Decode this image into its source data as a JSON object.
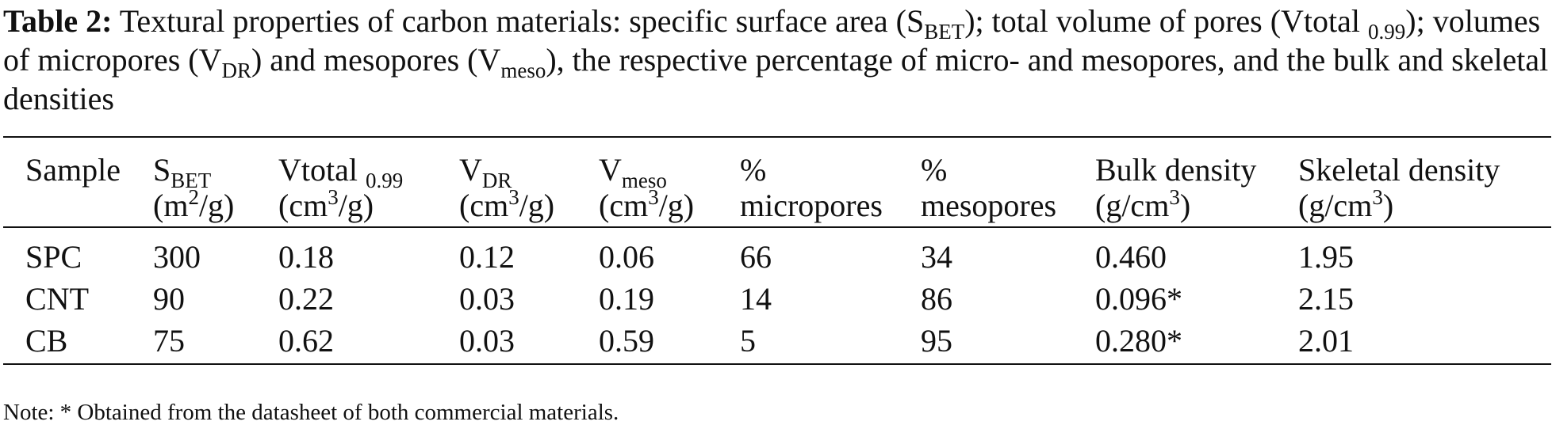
{
  "caption": {
    "label": "Table 2:",
    "part1": " Textural properties of carbon materials: specific surface area (S",
    "sub1": "BET",
    "part2": "); total volume of pores (Vtotal ",
    "sub2": "0.99",
    "part3": "); volumes of micropores (V",
    "sub3": "DR",
    "part4": ") and mesopores (V",
    "sub4": "meso",
    "part5": "), the respective percentage of micro- and mesopores, and the bulk and skeletal densities"
  },
  "table": {
    "headers": {
      "sample": "Sample",
      "sbet_main": "S",
      "sbet_sub": "BET",
      "sbet_unit_a": "(m",
      "sbet_unit_sup": "2",
      "sbet_unit_b": "/g)",
      "vtotal_main": "Vtotal ",
      "vtotal_sub": "0.99",
      "vtotal_unit_a": "(cm",
      "vtotal_unit_sup": "3",
      "vtotal_unit_b": "/g)",
      "vdr_main": "V",
      "vdr_sub": "DR",
      "vdr_unit_a": "(cm",
      "vdr_unit_sup": "3",
      "vdr_unit_b": "/g)",
      "vmeso_main": "V",
      "vmeso_sub": "meso",
      "vmeso_unit_a": "(cm",
      "vmeso_unit_sup": "3",
      "vmeso_unit_b": "/g)",
      "micro_line1": "%",
      "micro_line2": "micropores",
      "meso_line1": "%",
      "meso_line2": "mesopores",
      "bulk_line1": "Bulk density",
      "bulk_unit_a": "(g/cm",
      "bulk_unit_sup": "3",
      "bulk_unit_b": ")",
      "skel_line1": "Skeletal density",
      "skel_unit_a": "(g/cm",
      "skel_unit_sup": "3",
      "skel_unit_b": ")"
    },
    "rows": [
      {
        "sample": "SPC",
        "sbet": "300",
        "vtotal": "0.18",
        "vdr": "0.12",
        "vmeso": "0.06",
        "micro": "66",
        "meso": "34",
        "bulk": "0.460",
        "skeletal": "1.95"
      },
      {
        "sample": "CNT",
        "sbet": "90",
        "vtotal": "0.22",
        "vdr": "0.03",
        "vmeso": "0.19",
        "micro": "14",
        "meso": "86",
        "bulk": "0.096*",
        "skeletal": "2.15"
      },
      {
        "sample": "CB",
        "sbet": "75",
        "vtotal": "0.62",
        "vdr": "0.03",
        "vmeso": "0.59",
        "micro": "5",
        "meso": "95",
        "bulk": "0.280*",
        "skeletal": "2.01"
      }
    ]
  },
  "note": "Note: * Obtained from the datasheet of both commercial materials."
}
